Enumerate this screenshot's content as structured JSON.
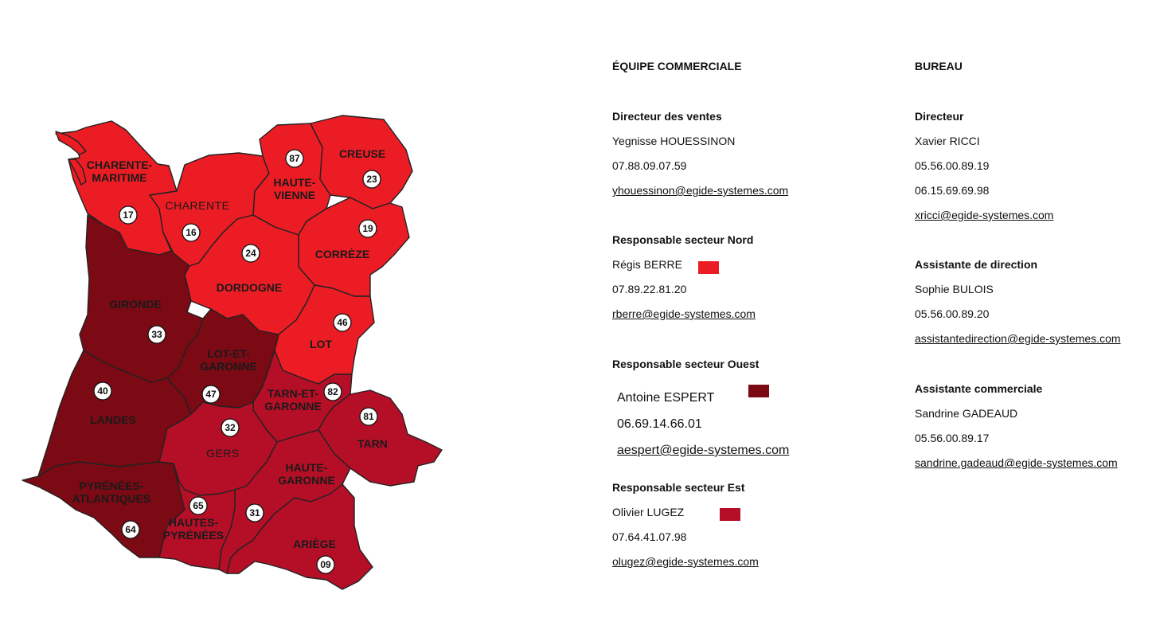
{
  "colors": {
    "nord": "#ec1c24",
    "ouest": "#7b0a14",
    "est": "#b50f27",
    "border": "#222222"
  },
  "map": {
    "departments": [
      {
        "key": "charente_maritime",
        "name_lines": [
          "CHARENTE-",
          "MARITIME"
        ],
        "number": "17",
        "sector": "nord"
      },
      {
        "key": "charente",
        "name_lines": [
          "CHARENTE"
        ],
        "number": "16",
        "sector": "nord"
      },
      {
        "key": "haute_vienne",
        "name_lines": [
          "HAUTE-",
          "VIENNE"
        ],
        "number": "87",
        "sector": "nord"
      },
      {
        "key": "creuse",
        "name_lines": [
          "CREUSE"
        ],
        "number": "23",
        "sector": "nord"
      },
      {
        "key": "correze",
        "name_lines": [
          "CORRÈZE"
        ],
        "number": "19",
        "sector": "nord"
      },
      {
        "key": "dordogne",
        "name_lines": [
          "DORDOGNE"
        ],
        "number": "24",
        "sector": "nord"
      },
      {
        "key": "lot",
        "name_lines": [
          "LOT"
        ],
        "number": "46",
        "sector": "nord"
      },
      {
        "key": "gironde",
        "name_lines": [
          "GIRONDE"
        ],
        "number": "33",
        "sector": "ouest"
      },
      {
        "key": "lot_et_garonne",
        "name_lines": [
          "LOT-ET-",
          "GARONNE"
        ],
        "number": "47",
        "sector": "ouest"
      },
      {
        "key": "landes",
        "name_lines": [
          "LANDES"
        ],
        "number": "40",
        "sector": "ouest"
      },
      {
        "key": "pyrenees_atlantiques",
        "name_lines": [
          "PYRÉNÉES-",
          "ATLANTIQUES"
        ],
        "number": "64",
        "sector": "ouest"
      },
      {
        "key": "tarn_et_garonne",
        "name_lines": [
          "TARN-ET-",
          "GARONNE"
        ],
        "number": "82",
        "sector": "est"
      },
      {
        "key": "tarn",
        "name_lines": [
          "TARN"
        ],
        "number": "81",
        "sector": "est"
      },
      {
        "key": "gers",
        "name_lines": [
          "GERS"
        ],
        "number": "32",
        "sector": "est"
      },
      {
        "key": "haute_garonne",
        "name_lines": [
          "HAUTE-",
          "GARONNE"
        ],
        "number": "31",
        "sector": "est"
      },
      {
        "key": "hautes_pyrenees",
        "name_lines": [
          "HAUTES-",
          "PYRÉNÉES"
        ],
        "number": "65",
        "sector": "est"
      },
      {
        "key": "ariege",
        "name_lines": [
          "ARIÈGE"
        ],
        "number": "09",
        "sector": "est"
      }
    ]
  },
  "equipe": {
    "heading": "ÉQUIPE COMMERCIALE",
    "directeur": {
      "role": "Directeur des ventes",
      "name": "Yegnisse HOUESSINON",
      "phone": "07.88.09.07.59",
      "email": "yhouessinon@egide-systemes.com"
    },
    "nord": {
      "role": "Responsable secteur Nord",
      "name": "Régis BERRE",
      "phone": "07.89.22.81.20",
      "email": "rberre@egide-systemes.com"
    },
    "ouest": {
      "role": "Responsable secteur Ouest",
      "name": "Antoine ESPERT",
      "phone": "06.69.14.66.01",
      "email": "aespert@egide-systemes.com"
    },
    "est": {
      "role": "Responsable secteur Est",
      "name": "Olivier LUGEZ",
      "phone": "07.64.41.07.98",
      "email": "olugez@egide-systemes.com"
    }
  },
  "bureau": {
    "heading": "BUREAU",
    "directeur": {
      "role": "Directeur",
      "name": "Xavier RICCI",
      "phone1": "05.56.00.89.19",
      "phone2": "06.15.69.69.98",
      "email": "xricci@egide-systemes.com"
    },
    "assistante_direction": {
      "role": "Assistante de direction",
      "name": "Sophie BULOIS",
      "phone": "05.56.00.89.20",
      "email": "assistantedirection@egide-systemes.com"
    },
    "assistante_commerciale": {
      "role": "Assistante commerciale",
      "name": "Sandrine GADEAUD",
      "phone": "05.56.00.89.17",
      "email": "sandrine.gadeaud@egide-systemes.com"
    }
  }
}
